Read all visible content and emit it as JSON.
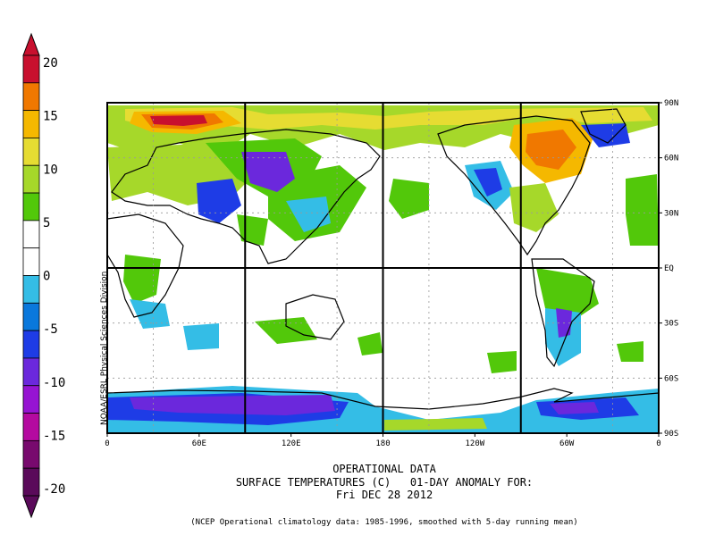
{
  "colorbar": {
    "ticks": [
      "20",
      "15",
      "10",
      "5",
      "0",
      "-5",
      "-10",
      "-15",
      "-20"
    ],
    "colors": [
      "#c8102e",
      "#f07800",
      "#f5b800",
      "#e6dc32",
      "#a6d82a",
      "#52c80a",
      "#ffffff",
      "#ffffff",
      "#34bde6",
      "#0a78dc",
      "#1e3ce6",
      "#6b28dc",
      "#9614d2",
      "#b40aa0",
      "#780a6e",
      "#5a0a5a"
    ]
  },
  "map": {
    "projection": "cylindrical-equidistant",
    "lat_labels": [
      "90N",
      "60N",
      "30N",
      "EQ",
      "30S",
      "60S",
      "90S"
    ],
    "lon_labels": [
      "0",
      "60E",
      "120E",
      "180",
      "120W",
      "60W",
      "0"
    ]
  },
  "credit": "NOAA/ESRL Physical Sciences Division",
  "titles": {
    "line1": "OPERATIONAL DATA",
    "line2": "SURFACE TEMPERATURES (C)   01-DAY ANOMALY FOR:",
    "line3": "Fri DEC 28 2012"
  },
  "footnote": "(NCEP Operational climatology data: 1985-1996, smoothed with 5-day running mean)"
}
